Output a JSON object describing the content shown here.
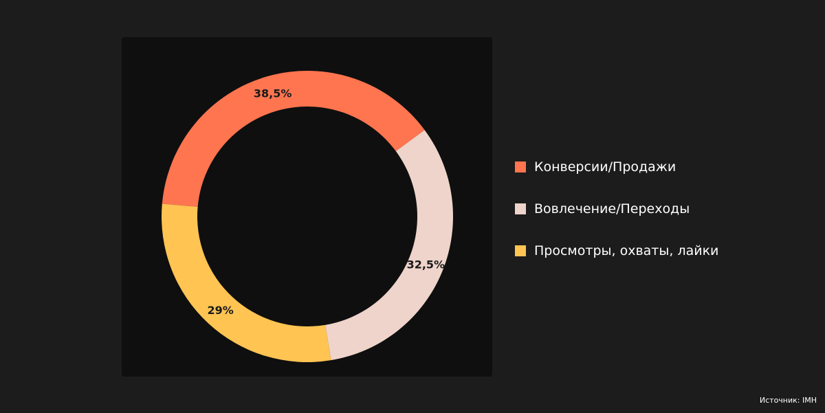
{
  "chart_data": {
    "type": "pie",
    "style": "donut",
    "series": [
      {
        "name": "Конверсии/Продажи",
        "value": 38.5,
        "label": "38,5%",
        "color": "#ff7550"
      },
      {
        "name": "Вовлечение/Переходы",
        "value": 32.5,
        "label": "32,5%",
        "color": "#efd4cb"
      },
      {
        "name": "Просмотры, охваты, лайки",
        "value": 29,
        "label": "29%",
        "color": "#ffc452"
      }
    ],
    "legend_position": "right"
  },
  "legend": {
    "items": [
      {
        "label": "Конверсии/Продажи",
        "color": "#ff7550"
      },
      {
        "label": "Вовлечение/Переходы",
        "color": "#efd4cb"
      },
      {
        "label": "Просмотры, охваты, лайки",
        "color": "#ffc452"
      }
    ]
  },
  "source": "Источник: IMH"
}
